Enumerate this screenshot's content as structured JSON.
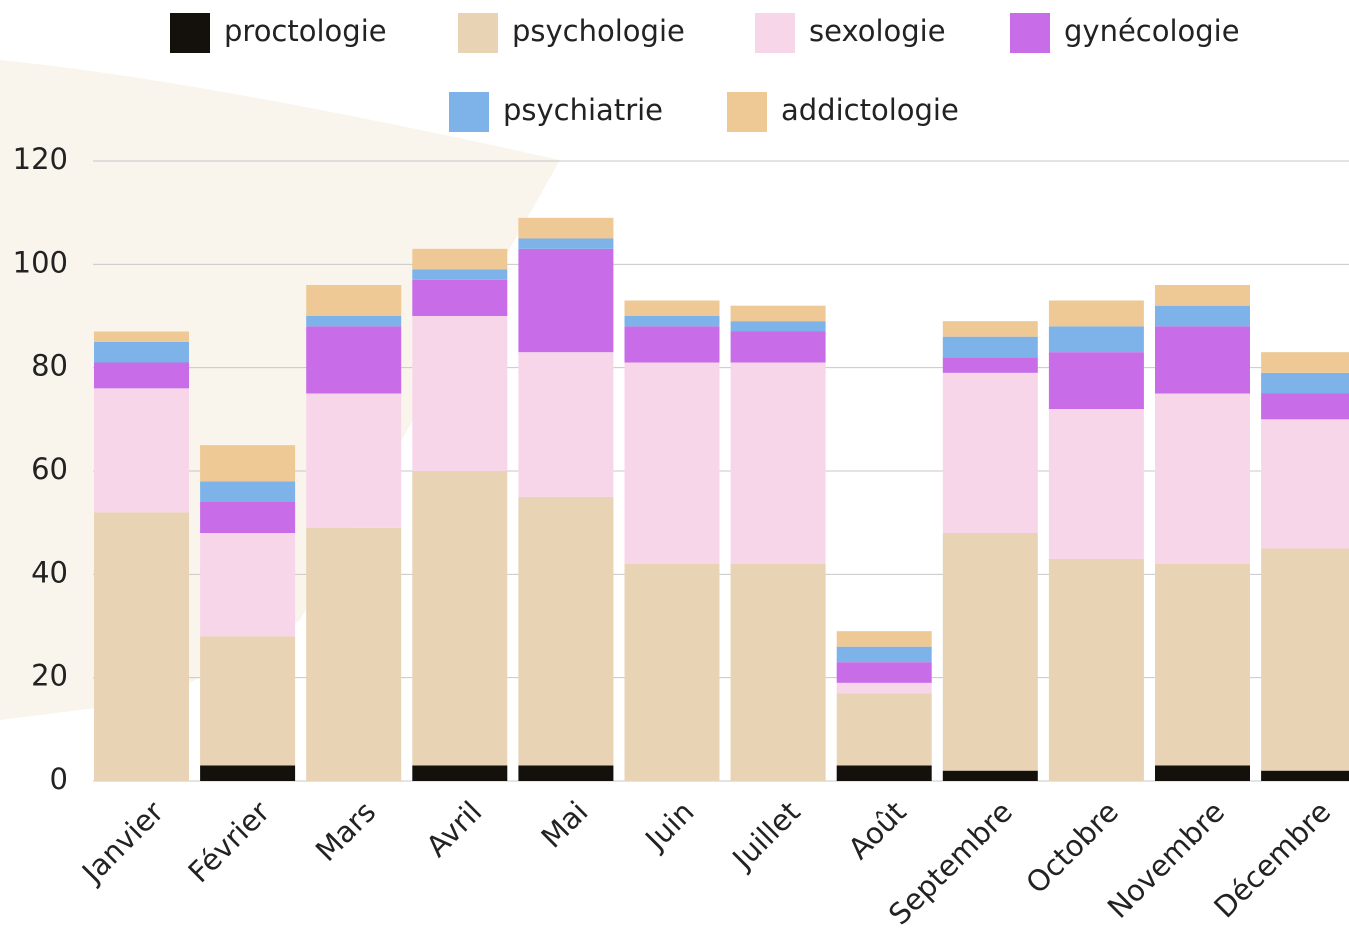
{
  "chart_data": {
    "type": "stacked_bar",
    "categories": [
      "Janvier",
      "Février",
      "Mars",
      "Avril",
      "Mai",
      "Juin",
      "Juillet",
      "Août",
      "Septembre",
      "Octobre",
      "Novembre",
      "Décembre"
    ],
    "series": [
      {
        "name": "proctologie",
        "color": "#14110d",
        "values": [
          0,
          3,
          0,
          3,
          3,
          0,
          0,
          3,
          2,
          0,
          3,
          2
        ]
      },
      {
        "name": "psychologie",
        "color": "#e8d3b5",
        "values": [
          52,
          25,
          49,
          57,
          52,
          42,
          42,
          14,
          46,
          43,
          39,
          43
        ]
      },
      {
        "name": "sexologie",
        "color": "#f7d6ea",
        "values": [
          24,
          20,
          26,
          30,
          28,
          39,
          39,
          2,
          31,
          29,
          33,
          25
        ]
      },
      {
        "name": "gynécologie",
        "color": "#c86ce8",
        "values": [
          5,
          6,
          13,
          7,
          20,
          7,
          6,
          4,
          3,
          11,
          13,
          5
        ]
      },
      {
        "name": "psychiatrie",
        "color": "#7db3e8",
        "values": [
          4,
          4,
          2,
          2,
          2,
          2,
          2,
          3,
          4,
          5,
          4,
          4
        ]
      },
      {
        "name": "addictologie",
        "color": "#eec996",
        "values": [
          2,
          7,
          6,
          4,
          4,
          3,
          3,
          3,
          3,
          5,
          4,
          4
        ]
      }
    ],
    "ylim": [
      0,
      120
    ],
    "yticks": [
      0,
      20,
      40,
      60,
      80,
      100,
      120
    ],
    "grid": true
  }
}
